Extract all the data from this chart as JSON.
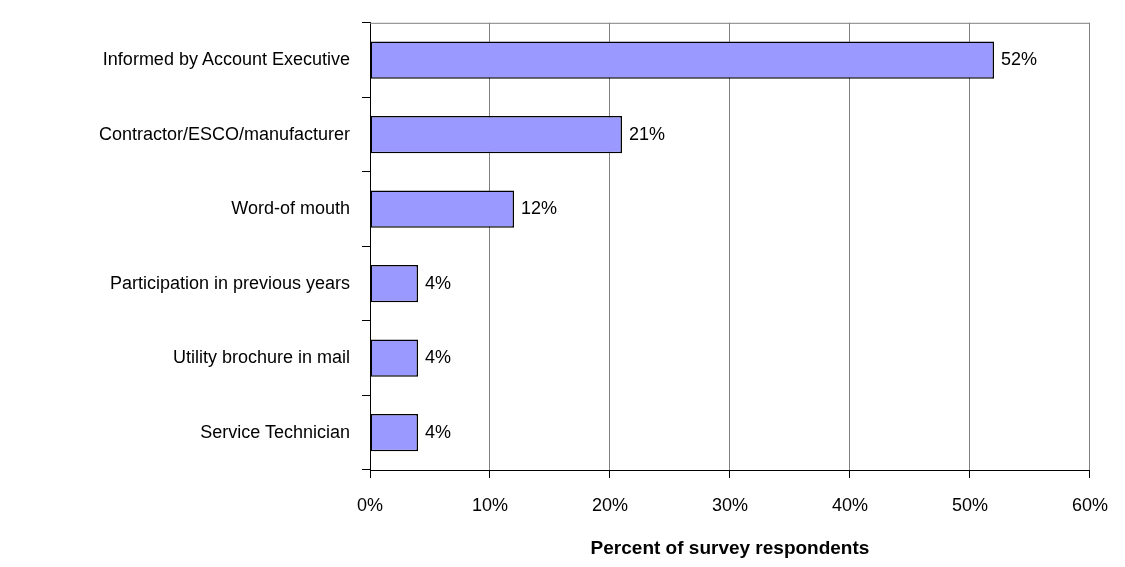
{
  "chart_data": {
    "type": "bar",
    "orientation": "horizontal",
    "xlabel": "Percent of survey respondents",
    "categories": [
      "Informed by Account Executive",
      "Contractor/ESCO/manufacturer",
      "Word-of mouth",
      "Participation in previous years",
      "Utility brochure in mail",
      "Service Technician"
    ],
    "values": [
      52,
      21,
      12,
      4,
      4,
      4
    ],
    "color": "#9999ff",
    "value_labels": [
      "52%",
      "21%",
      "12%",
      "4%",
      "4%",
      "4%"
    ],
    "xlim": [
      0,
      60
    ],
    "xticks": [
      {
        "value": 0,
        "label": "0%"
      },
      {
        "value": 10,
        "label": "10%"
      },
      {
        "value": 20,
        "label": "20%"
      },
      {
        "value": 30,
        "label": "30%"
      },
      {
        "value": 40,
        "label": "40%"
      },
      {
        "value": 50,
        "label": "50%"
      },
      {
        "value": 60,
        "label": "60%"
      }
    ],
    "grid": "x"
  }
}
